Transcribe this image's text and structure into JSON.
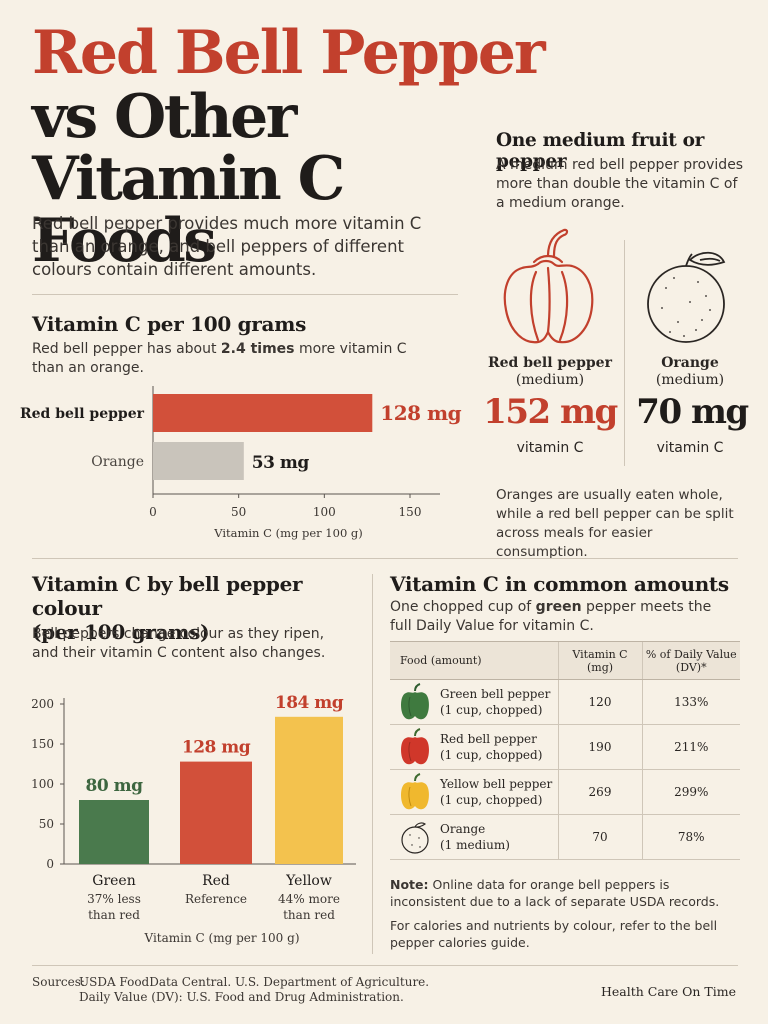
{
  "header": {
    "title_line1": "Red Bell Pepper",
    "title_line2": "vs Other",
    "title_line3": "Vitamin C Foods",
    "intro": "Red bell pepper provides much more vitamin C than an orange, and bell peppers of different colours contain different amounts."
  },
  "colors": {
    "red": "#d2503a",
    "gray": "#c9c4bb",
    "green": "#4a7a4d",
    "yellow": "#f3c24e",
    "background": "#f7f1e6"
  },
  "section_per100": {
    "title": "Vitamin C per 100 grams",
    "subtitle_pre": "Red bell pepper has about ",
    "subtitle_bold": "2.4 times",
    "subtitle_post": " more vitamin C than an orange."
  },
  "section_medium": {
    "title": "One medium fruit or pepper",
    "subtitle": "A medium red bell pepper provides more than double the vitamin C of a medium orange.",
    "left": {
      "name": "Red bell pepper",
      "size": "(medium)",
      "value": "152 mg",
      "label": "vitamin C",
      "icon": "bell-pepper-outline-icon"
    },
    "right": {
      "name": "Orange",
      "size": "(medium)",
      "value": "70 mg",
      "label": "vitamin C",
      "icon": "orange-outline-icon"
    },
    "footnote": "Oranges are usually eaten whole, while a red bell pepper can be split across meals for easier consumption."
  },
  "section_colour": {
    "title_line1": "Vitamin C by bell pepper colour",
    "title_line2": "(per 100 grams)",
    "subtitle": "Bell peppers change colour as they ripen, and their vitamin C content also changes."
  },
  "section_amounts": {
    "title": "Vitamin C in common amounts",
    "subtitle_pre": "One chopped cup of ",
    "subtitle_bold": "green",
    "subtitle_post": " pepper meets the full Daily Value for vitamin C.",
    "columns": [
      "Food (amount)",
      "Vitamin C (mg)",
      "% of Daily Value (DV)*"
    ],
    "rows": [
      {
        "name": "Green bell pepper",
        "amount": "(1 cup, chopped)",
        "mg": "120",
        "dv": "133%",
        "icon": "green-pepper-icon"
      },
      {
        "name": "Red bell pepper",
        "amount": "(1 cup, chopped)",
        "mg": "190",
        "dv": "211%",
        "icon": "red-pepper-icon"
      },
      {
        "name": "Yellow bell pepper",
        "amount": "(1 cup, chopped)",
        "mg": "269",
        "dv": "299%",
        "icon": "yellow-pepper-icon"
      },
      {
        "name": "Orange",
        "amount": "(1 medium)",
        "mg": "70",
        "dv": "78%",
        "icon": "orange-outline-icon"
      }
    ],
    "note_label": "Note:",
    "note_text": " Online data for orange bell peppers is inconsistent due to a lack of separate USDA records.",
    "note2": "For calories and nutrients by colour, refer to the bell pepper calories guide."
  },
  "footer": {
    "sources_label": "Sources:",
    "source1": "USDA FoodData Central. U.S. Department of Agriculture.",
    "source2": "Daily Value (DV): U.S. Food and Drug Administration.",
    "brand": "Health Care On Time"
  },
  "chart_data": [
    {
      "type": "bar",
      "orientation": "horizontal",
      "categories": [
        "Red bell pepper",
        "Orange"
      ],
      "values": [
        128,
        53
      ],
      "value_labels": [
        "128 mg",
        "53 mg"
      ],
      "xlabel": "Vitamin C (mg per 100 g)",
      "xlim": [
        0,
        150
      ],
      "ticks": [
        "0",
        "50",
        "100",
        "150"
      ],
      "tick_values": [
        0,
        50,
        100,
        150
      ],
      "grid": false
    },
    {
      "type": "bar",
      "categories": [
        "Green",
        "Red",
        "Yellow"
      ],
      "values": [
        80,
        128,
        184
      ],
      "value_labels": [
        "80 mg",
        "128 mg",
        "184 mg"
      ],
      "category_notes": [
        [
          "37% less",
          "than red"
        ],
        [
          "Reference",
          ""
        ],
        [
          "44% more",
          "than red"
        ]
      ],
      "xlabel": "Vitamin C (mg per 100 g)",
      "ylim": [
        0,
        200
      ],
      "ticks": [
        "0",
        "50",
        "100",
        "150",
        "200"
      ],
      "tick_values": [
        0,
        50,
        100,
        150,
        200
      ],
      "grid": false
    }
  ]
}
